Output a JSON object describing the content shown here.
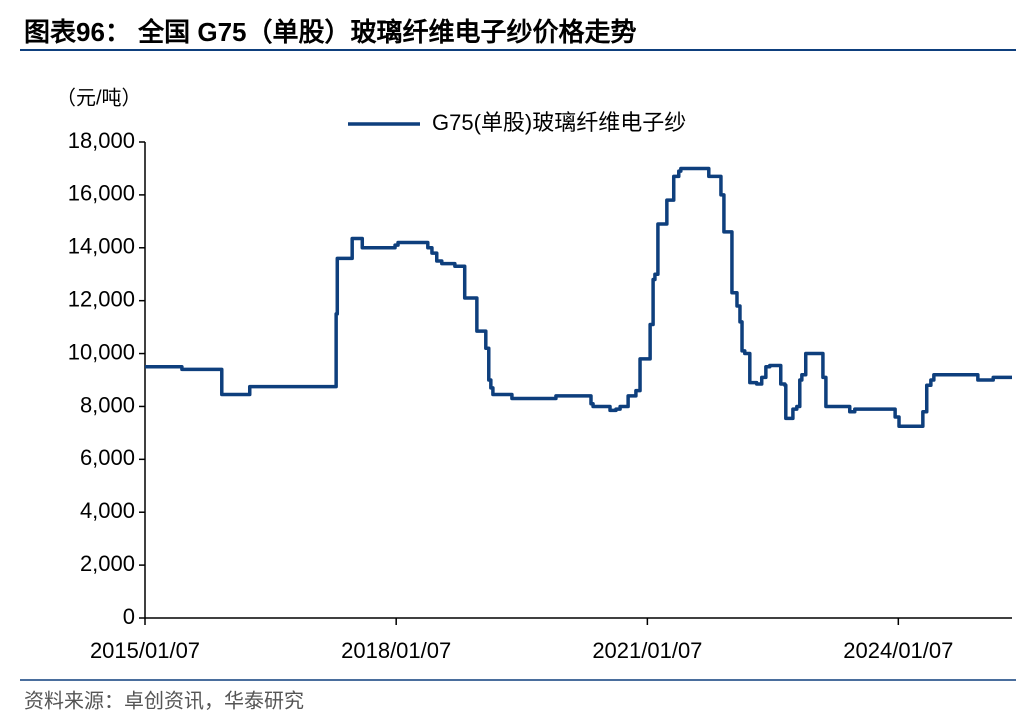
{
  "chart_data": {
    "type": "line",
    "title": "图表96： 全国 G75（单股）玻璃纤维电子纱价格走势",
    "ylabel": "（元/吨）",
    "source": "资料来源：卓创资讯，华泰研究",
    "legend": "top",
    "ylim": [
      0,
      18000
    ],
    "yticks": [
      0,
      {
        "value": 2000,
        "label": "2,000"
      },
      {
        "value": 4000,
        "label": "4,000"
      },
      {
        "value": 6000,
        "label": "6,000"
      },
      {
        "value": 8000,
        "label": "8,000"
      },
      {
        "value": 10000,
        "label": "10,000"
      },
      {
        "value": 12000,
        "label": "12,000"
      },
      {
        "value": 14000,
        "label": "14,000"
      },
      {
        "value": 16000,
        "label": "16,000"
      },
      {
        "value": 18000,
        "label": "18,000"
      }
    ],
    "xlim": [
      "2015/01/07",
      "2025/05/17"
    ],
    "xticks": [
      "2015/01/07",
      "2018/01/07",
      "2021/01/07",
      "2024/01/07"
    ],
    "x": [
      "2015/01/07",
      "2015/06/17",
      "2015/06/17",
      "2015/12/08",
      "2015/12/08",
      "2016/04/08",
      "2016/04/08",
      "2017/04/20",
      "2017/04/20",
      "2017/04/25",
      "2017/04/25",
      "2017/06/29",
      "2017/06/29",
      "2017/08/12",
      "2017/08/12",
      "2018/01/02",
      "2018/01/02",
      "2018/01/15",
      "2018/01/15",
      "2018/05/25",
      "2018/05/25",
      "2018/06/12",
      "2018/06/12",
      "2018/07/03",
      "2018/07/03",
      "2018/07/25",
      "2018/07/25",
      "2018/09/20",
      "2018/09/20",
      "2018/11/02",
      "2018/11/02",
      "2018/12/25",
      "2018/12/25",
      "2019/02/02",
      "2019/02/02",
      "2019/02/15",
      "2019/02/15",
      "2019/02/24",
      "2019/02/24",
      "2019/03/05",
      "2019/03/05",
      "2019/05/27",
      "2019/05/27",
      "2019/12/05",
      "2019/12/05",
      "2020/05/06",
      "2020/05/06",
      "2020/05/15",
      "2020/05/15",
      "2020/07/28",
      "2020/07/28",
      "2020/08/23",
      "2020/08/23",
      "2020/09/10",
      "2020/09/10",
      "2020/10/15",
      "2020/10/15",
      "2020/11/18",
      "2020/11/18",
      "2020/12/06",
      "2020/12/06",
      "2021/01/19",
      "2021/01/19",
      "2021/02/01",
      "2021/02/01",
      "2021/02/09",
      "2021/02/09",
      "2021/02/22",
      "2021/02/22",
      "2021/04/02",
      "2021/04/02",
      "2021/05/02",
      "2021/05/02",
      "2021/05/24",
      "2021/05/24",
      "2021/06/02",
      "2021/06/02",
      "2021/10/02",
      "2021/10/02",
      "2021/11/24",
      "2021/11/24",
      "2021/12/07",
      "2021/12/07",
      "2022/01/11",
      "2022/01/11",
      "2022/02/02",
      "2022/02/02",
      "2022/02/15",
      "2022/02/15",
      "2022/02/24",
      "2022/02/24",
      "2022/03/08",
      "2022/03/08",
      "2022/03/30",
      "2022/03/30",
      "2022/04/29",
      "2022/04/29",
      "2022/05/21",
      "2022/05/21",
      "2022/06/08",
      "2022/06/08",
      "2022/06/25",
      "2022/06/25",
      "2022/08/12",
      "2022/08/12",
      "2022/08/30",
      "2022/08/30",
      "2022/09/03",
      "2022/09/03",
      "2022/10/04",
      "2022/10/04",
      "2022/10/21",
      "2022/10/21",
      "2022/11/03",
      "2022/11/03",
      "2022/11/12",
      "2022/11/12",
      "2022/11/29",
      "2022/11/29",
      "2023/02/12",
      "2023/02/12",
      "2023/02/25",
      "2023/02/25",
      "2023/06/09",
      "2023/06/09",
      "2023/07/01",
      "2023/07/01",
      "2023/12/24",
      "2023/12/24",
      "2024/01/10",
      "2024/01/10",
      "2024/04/23",
      "2024/04/23",
      "2024/05/10",
      "2024/05/10",
      "2024/05/28",
      "2024/05/28",
      "2024/06/10",
      "2024/06/10",
      "2024/12/19",
      "2024/12/19",
      "2025/02/24",
      "2025/02/24",
      "2025/05/17"
    ],
    "series": [
      {
        "name": "G75(单股)玻璃纤维电子纱",
        "color": "#0e3f7d",
        "values": [
          9500,
          9500,
          9400,
          9400,
          8450,
          8450,
          8750,
          8750,
          11500,
          11500,
          13600,
          13600,
          14350,
          14350,
          14000,
          14000,
          14100,
          14100,
          14200,
          14200,
          14000,
          14000,
          13800,
          13800,
          13500,
          13500,
          13400,
          13400,
          13300,
          13300,
          12100,
          12100,
          10850,
          10850,
          10200,
          10200,
          9000,
          9000,
          8700,
          8700,
          8450,
          8450,
          8300,
          8300,
          8400,
          8400,
          8100,
          8100,
          8000,
          8000,
          7850,
          7850,
          7900,
          7900,
          8000,
          8000,
          8400,
          8400,
          8600,
          8600,
          9800,
          9800,
          11100,
          11100,
          12800,
          12800,
          13000,
          13000,
          14900,
          14900,
          15800,
          15800,
          16700,
          16700,
          16900,
          16900,
          17000,
          17000,
          16700,
          16700,
          16000,
          16000,
          14600,
          14600,
          12300,
          12300,
          11800,
          11800,
          11200,
          11200,
          10100,
          10100,
          10000,
          10000,
          8900,
          8900,
          8850,
          8850,
          9100,
          9100,
          9500,
          9500,
          9550,
          9550,
          8850,
          8850,
          8800,
          8800,
          7550,
          7550,
          7900,
          7900,
          8000,
          8000,
          9000,
          9000,
          9200,
          9200,
          10000,
          10000,
          9100,
          9100,
          8000,
          8000,
          7800,
          7800,
          7900,
          7900,
          7600,
          7600,
          7250,
          7250,
          7800,
          7800,
          8800,
          8800,
          9000,
          9000,
          9200,
          9200,
          9000,
          9000,
          9100,
          9100
        ]
      }
    ]
  }
}
